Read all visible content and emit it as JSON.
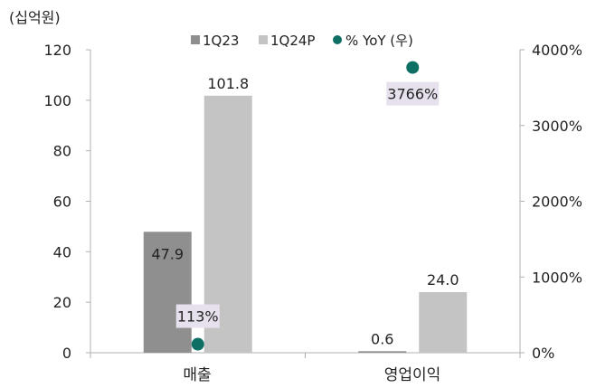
{
  "chart_data": {
    "type": "bar",
    "unit_label": "(십억원)",
    "categories": [
      "매출",
      "영업이익"
    ],
    "series": [
      {
        "name": "1Q23",
        "values": [
          47.9,
          0.6
        ],
        "color": "#8f8f8f"
      },
      {
        "name": "1Q24P",
        "values": [
          101.8,
          24.0
        ],
        "color": "#c4c4c4"
      }
    ],
    "secondary_series": {
      "name": "% YoY (우)",
      "type": "scatter",
      "values": [
        113,
        3766
      ],
      "labels": [
        "113%",
        "3766%"
      ],
      "color": "#0e6f64",
      "label_bg": "#e7e1ee"
    },
    "bar_value_labels": [
      [
        "47.9",
        "0.6"
      ],
      [
        "101.8",
        "24.0"
      ]
    ],
    "ylim": [
      0,
      120
    ],
    "y_ticks": [
      "0",
      "20",
      "40",
      "60",
      "80",
      "100",
      "120"
    ],
    "y2lim": [
      0,
      4000
    ],
    "y2_ticks": [
      "0%",
      "1000%",
      "2000%",
      "3000%",
      "4000%"
    ],
    "legend_position": "top-center",
    "grid": false
  }
}
